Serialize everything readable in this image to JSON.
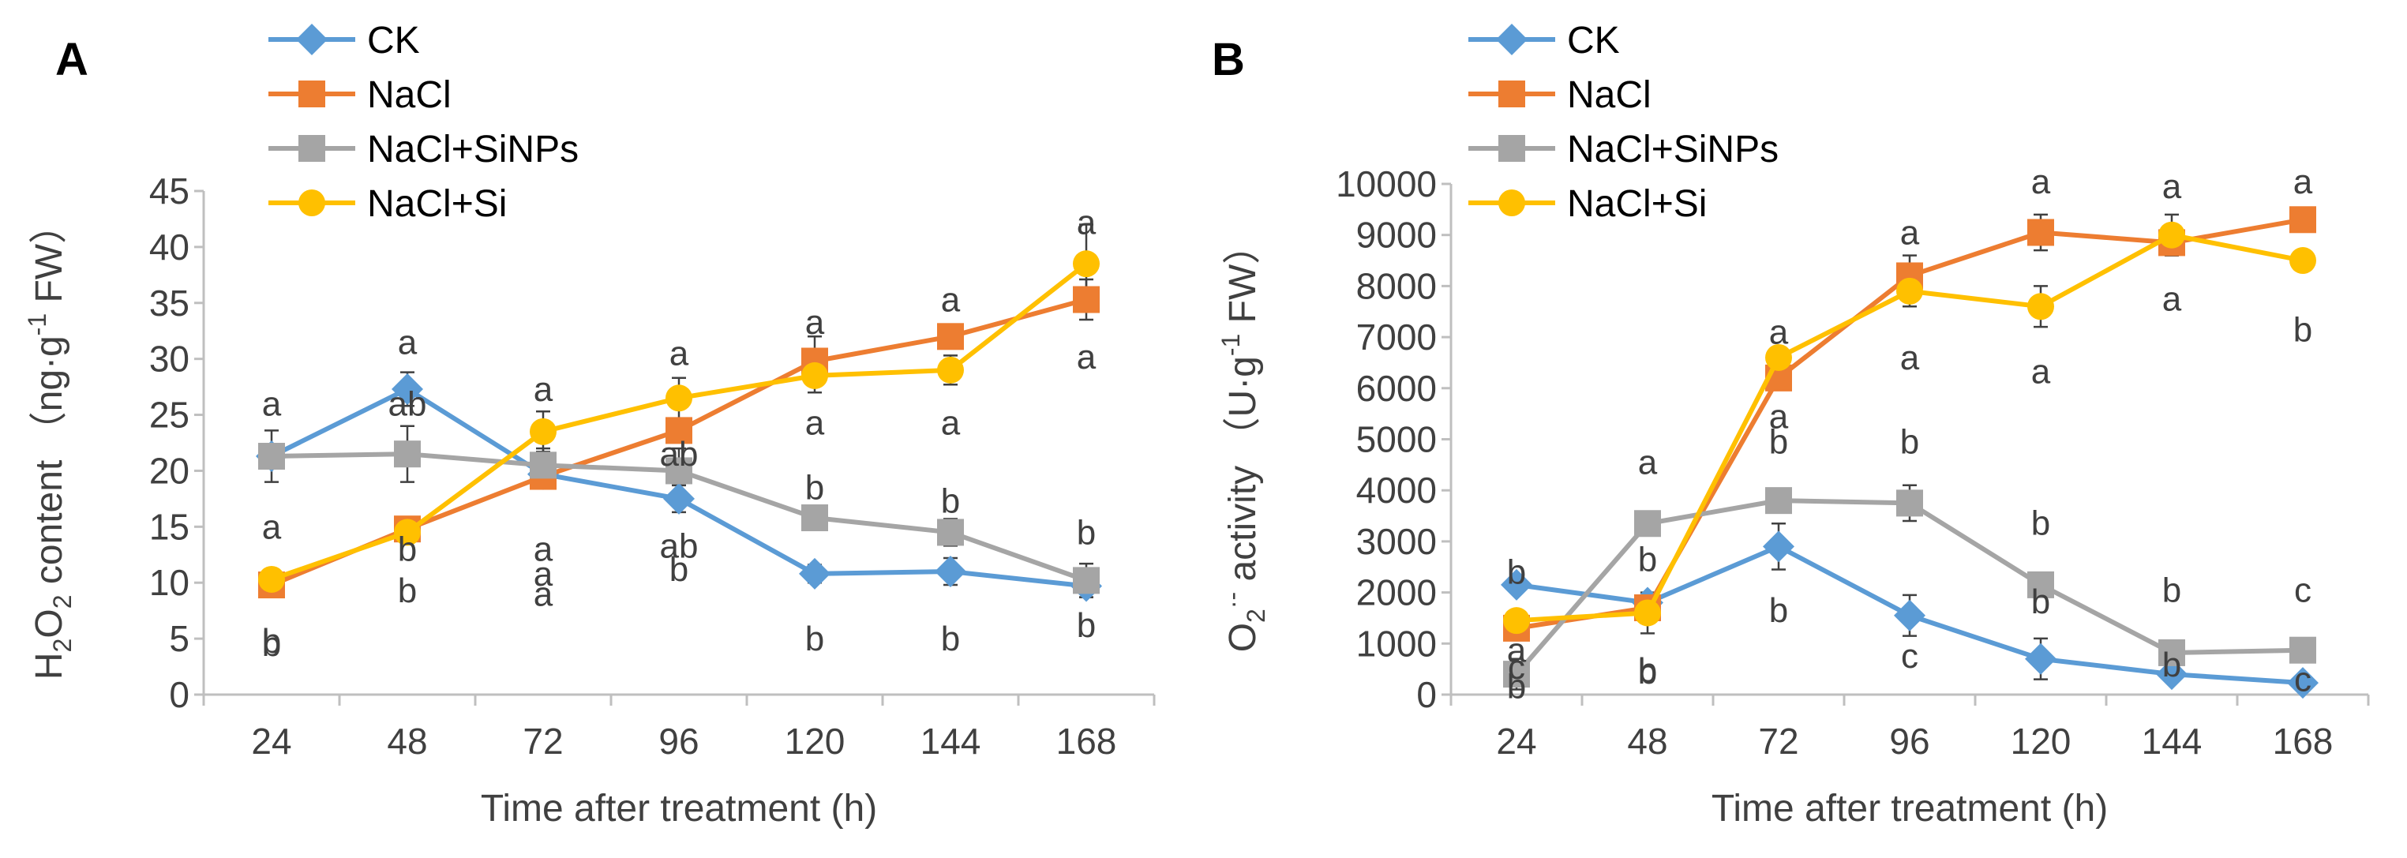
{
  "chart_data": [
    {
      "type": "line",
      "panel": "A",
      "title": "",
      "xlabel": "Time after treatment (h)",
      "ylabel": {
        "main": "H",
        "sub1": "2",
        "mid": "O",
        "sub2": "2",
        "rest": " content （ng·g",
        "sup": "-1",
        "end": " FW）"
      },
      "categories": [
        "24",
        "48",
        "72",
        "96",
        "120",
        "144",
        "168"
      ],
      "ylim": [
        0,
        45
      ],
      "yticks": [
        "0",
        "5",
        "10",
        "15",
        "20",
        "25",
        "30",
        "35",
        "40",
        "45"
      ],
      "series": [
        {
          "name": "CK",
          "color": "#5B9BD5",
          "marker": "diamond",
          "values": [
            21.3,
            27.3,
            19.7,
            17.5,
            10.8,
            11.0,
            9.7
          ],
          "errors": [
            0,
            1.5,
            0,
            1.2,
            0.8,
            1.2,
            1.0
          ]
        },
        {
          "name": "NaCl",
          "color": "#ED7D31",
          "marker": "square",
          "values": [
            9.8,
            14.8,
            19.5,
            23.6,
            29.8,
            32.0,
            35.3
          ],
          "errors": [
            0,
            0,
            0,
            0,
            2.2,
            0,
            1.8
          ]
        },
        {
          "name": "NaCl+SiNPs",
          "color": "#A5A5A5",
          "marker": "square",
          "values": [
            21.3,
            21.5,
            20.5,
            20.0,
            15.8,
            14.5,
            10.2
          ],
          "errors": [
            2.3,
            2.5,
            1.5,
            2.0,
            0,
            1.2,
            1.5
          ]
        },
        {
          "name": "NaCl+Si",
          "color": "#FFC000",
          "marker": "circle",
          "values": [
            10.3,
            14.5,
            23.5,
            26.5,
            28.5,
            29.0,
            38.5
          ],
          "errors": [
            0,
            0,
            1.8,
            1.8,
            1.5,
            1.3,
            3.5
          ]
        }
      ],
      "significance": [
        {
          "label": "a",
          "x": "24",
          "y": 26.0
        },
        {
          "label": "a",
          "x": "24",
          "y": 15.0
        },
        {
          "label": "b",
          "x": "24",
          "y": 4.8
        },
        {
          "label": "b",
          "x": "24",
          "y": 4.5
        },
        {
          "label": "a",
          "x": "48",
          "y": 31.5
        },
        {
          "label": "ab",
          "x": "48",
          "y": 26.0
        },
        {
          "label": "b",
          "x": "48",
          "y": 13.0
        },
        {
          "label": "b",
          "x": "48",
          "y": 9.3
        },
        {
          "label": "a",
          "x": "72",
          "y": 27.3
        },
        {
          "label": "a",
          "x": "72",
          "y": 13.0
        },
        {
          "label": "a",
          "x": "72",
          "y": 10.8
        },
        {
          "label": "a",
          "x": "72",
          "y": 9.0
        },
        {
          "label": "a",
          "x": "96",
          "y": 30.5
        },
        {
          "label": "ab",
          "x": "96",
          "y": 21.5
        },
        {
          "label": "ab",
          "x": "96",
          "y": 13.3
        },
        {
          "label": "b",
          "x": "96",
          "y": 11.2
        },
        {
          "label": "a",
          "x": "120",
          "y": 33.3
        },
        {
          "label": "a",
          "x": "120",
          "y": 24.3
        },
        {
          "label": "b",
          "x": "120",
          "y": 18.5
        },
        {
          "label": "b",
          "x": "120",
          "y": 5.0
        },
        {
          "label": "a",
          "x": "144",
          "y": 35.3
        },
        {
          "label": "a",
          "x": "144",
          "y": 24.3
        },
        {
          "label": "b",
          "x": "144",
          "y": 17.3
        },
        {
          "label": "b",
          "x": "144",
          "y": 5.0
        },
        {
          "label": "a",
          "x": "168",
          "y": 42.2
        },
        {
          "label": "a",
          "x": "168",
          "y": 30.2
        },
        {
          "label": "b",
          "x": "168",
          "y": 14.5
        },
        {
          "label": "b",
          "x": "168",
          "y": 6.2
        }
      ]
    },
    {
      "type": "line",
      "panel": "B",
      "title": "",
      "xlabel": "Time after treatment (h)",
      "ylabel": {
        "main": "O",
        "sub1": "2",
        "sup0": "·-",
        "rest": " activity （U·g",
        "sup": "-1",
        "end": " FW）"
      },
      "categories": [
        "24",
        "48",
        "72",
        "96",
        "120",
        "144",
        "168"
      ],
      "ylim": [
        0,
        10000
      ],
      "yticks": [
        "0",
        "1000",
        "2000",
        "3000",
        "4000",
        "5000",
        "6000",
        "7000",
        "8000",
        "9000",
        "10000"
      ],
      "series": [
        {
          "name": "CK",
          "color": "#5B9BD5",
          "marker": "diamond",
          "values": [
            2150,
            1800,
            2900,
            1550,
            700,
            400,
            230
          ],
          "errors": [
            0,
            0,
            450,
            400,
            400,
            0,
            0
          ]
        },
        {
          "name": "NaCl",
          "color": "#ED7D31",
          "marker": "square",
          "values": [
            1300,
            1700,
            6200,
            8200,
            9050,
            8850,
            9300
          ],
          "errors": [
            0,
            0,
            0,
            400,
            350,
            250,
            0
          ]
        },
        {
          "name": "NaCl+SiNPs",
          "color": "#A5A5A5",
          "marker": "square",
          "values": [
            400,
            3350,
            3800,
            3750,
            2150,
            820,
            870
          ],
          "errors": [
            300,
            0,
            0,
            350,
            0,
            0,
            0
          ]
        },
        {
          "name": "NaCl+Si",
          "color": "#FFC000",
          "marker": "circle",
          "values": [
            1450,
            1600,
            6600,
            7900,
            7600,
            9000,
            8500
          ],
          "errors": [
            0,
            400,
            0,
            300,
            400,
            400,
            0
          ]
        }
      ],
      "significance": [
        {
          "label": "b",
          "x": "24",
          "y": 2400
        },
        {
          "label": "a",
          "x": "24",
          "y": 870
        },
        {
          "label": "c",
          "x": "24",
          "y": 540
        },
        {
          "label": "b",
          "x": "24",
          "y": 160
        },
        {
          "label": "a",
          "x": "48",
          "y": 4550
        },
        {
          "label": "b",
          "x": "48",
          "y": 2650
        },
        {
          "label": "b",
          "x": "48",
          "y": 480
        },
        {
          "label": "b",
          "x": "48",
          "y": 450
        },
        {
          "label": "a",
          "x": "72",
          "y": 7100
        },
        {
          "label": "a",
          "x": "72",
          "y": 5450
        },
        {
          "label": "b",
          "x": "72",
          "y": 4950
        },
        {
          "label": "b",
          "x": "72",
          "y": 1650
        },
        {
          "label": "a",
          "x": "96",
          "y": 9050
        },
        {
          "label": "a",
          "x": "96",
          "y": 6600
        },
        {
          "label": "b",
          "x": "96",
          "y": 4950
        },
        {
          "label": "c",
          "x": "96",
          "y": 760
        },
        {
          "label": "a",
          "x": "120",
          "y": 10050
        },
        {
          "label": "a",
          "x": "120",
          "y": 6330
        },
        {
          "label": "b",
          "x": "120",
          "y": 3360
        },
        {
          "label": "b",
          "x": "120",
          "y": 1820
        },
        {
          "label": "a",
          "x": "144",
          "y": 9950
        },
        {
          "label": "a",
          "x": "144",
          "y": 7750
        },
        {
          "label": "b",
          "x": "144",
          "y": 2050
        },
        {
          "label": "b",
          "x": "144",
          "y": 590
        },
        {
          "label": "a",
          "x": "168",
          "y": 10050
        },
        {
          "label": "b",
          "x": "168",
          "y": 7150
        },
        {
          "label": "c",
          "x": "168",
          "y": 2050
        },
        {
          "label": "c",
          "x": "168",
          "y": 300
        }
      ]
    }
  ]
}
